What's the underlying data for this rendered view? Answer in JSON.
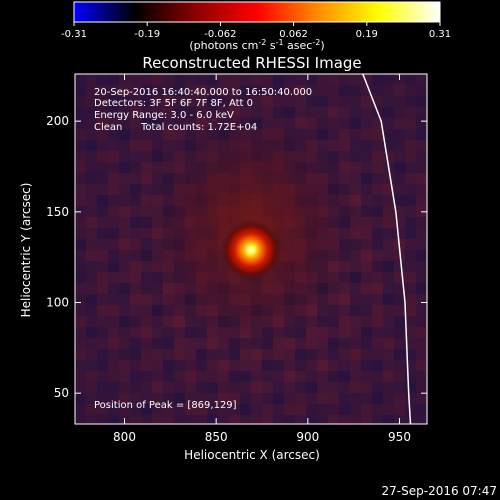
{
  "chart_data": {
    "type": "heatmap",
    "title": "Reconstructed RHESSI Image",
    "xlabel": "Heliocentric X (arcsec)",
    "ylabel": "Heliocentric Y (arcsec)",
    "xlim": [
      773,
      965
    ],
    "ylim": [
      33,
      226
    ],
    "x_ticks": [
      800,
      850,
      900,
      950
    ],
    "y_ticks": [
      50,
      100,
      150,
      200
    ],
    "colorbar": {
      "min": -0.31,
      "max": 0.31,
      "ticks": [
        "-0.31",
        "-0.19",
        "-0.062",
        "0.062",
        "0.19",
        "0.31"
      ],
      "unit_label": "(photons cm",
      "unit_exp1": "-2",
      "unit_mid": " s",
      "unit_exp2": "-1",
      "unit_mid2": " asec",
      "unit_exp3": "-2",
      "unit_end": ")",
      "colormap": [
        "#0000ff",
        "#000000",
        "#8b0000",
        "#ff0000",
        "#ff8c00",
        "#ffff00",
        "#ffffff"
      ]
    },
    "annotations": {
      "time_range": "20-Sep-2016 16:40:40.000 to 16:50:40.000",
      "detectors": "Detectors: 3F 5F 6F 7F 8F, Att 0",
      "energy": "Energy Range: 3.0 - 6.0 keV",
      "clean_label": "Clean",
      "total_counts": "Total counts: 1.72E+04",
      "peak": "Position of Peak = [869,129]"
    },
    "source_peak": {
      "x": 869,
      "y": 129,
      "value": 0.31
    },
    "limb_curve": [
      [
        930,
        226
      ],
      [
        940,
        200
      ],
      [
        948,
        150
      ],
      [
        953,
        100
      ],
      [
        955,
        50
      ],
      [
        956,
        33
      ]
    ],
    "timestamp": "27-Sep-2016 07:47"
  }
}
